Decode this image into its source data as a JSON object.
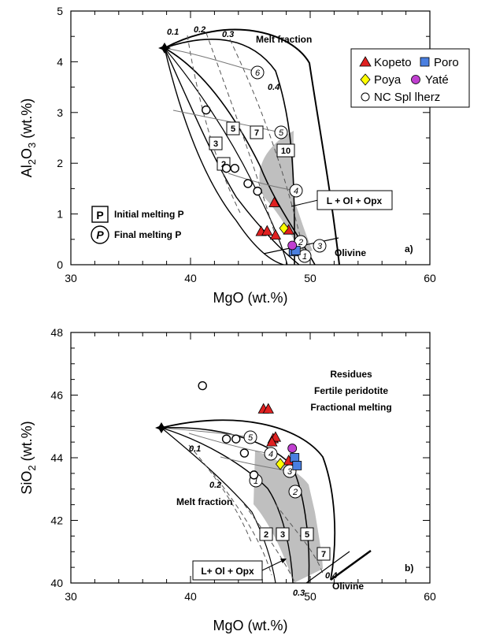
{
  "chart_data": [
    {
      "type": "scatter",
      "panel_label": "a)",
      "xlabel": "MgO (wt.%)",
      "ylabel": "Al2O3 (wt.%)",
      "xlim": [
        30,
        60
      ],
      "ylim": [
        0,
        5
      ],
      "xticks": [
        "30",
        "40",
        "50",
        "60"
      ],
      "yticks": [
        "0",
        "1",
        "2",
        "3",
        "4",
        "5"
      ],
      "grid": false,
      "legend_position": "top-right",
      "series": [
        {
          "name": "Kopeto",
          "marker": "triangle",
          "color": "#e02020",
          "points": [
            [
              47.0,
              1.22
            ],
            [
              45.9,
              0.65
            ],
            [
              46.4,
              0.66
            ],
            [
              47.1,
              0.58
            ],
            [
              48.2,
              0.68
            ]
          ]
        },
        {
          "name": "Poro",
          "marker": "square",
          "color": "#4a7fe0",
          "points": [
            [
              48.6,
              0.26
            ],
            [
              48.8,
              0.28
            ]
          ]
        },
        {
          "name": "Poya",
          "marker": "diamond",
          "color": "#ffff00",
          "points": [
            [
              47.8,
              0.72
            ]
          ]
        },
        {
          "name": "Yaté",
          "marker": "circle",
          "color": "#c040d0",
          "points": [
            [
              48.5,
              0.38
            ]
          ]
        },
        {
          "name": "NC Spl lherz",
          "marker": "open-circle",
          "color": "#ffffff",
          "points": [
            [
              41.3,
              3.05
            ],
            [
              43.0,
              1.9
            ],
            [
              43.7,
              1.9
            ],
            [
              44.8,
              1.6
            ],
            [
              45.6,
              1.45
            ]
          ]
        }
      ],
      "annotations": {
        "melt_fraction_title": "Melt fraction",
        "melt_fraction_labels": [
          "0.1",
          "0.2",
          "0.3",
          "0.4"
        ],
        "field_label": "L + Ol + Opx",
        "olivine_label": "Olivine",
        "initial_p_symbol": "P",
        "initial_p_label": "Initial melting P",
        "final_p_symbol": "P",
        "final_p_label": "Final melting P",
        "initial_pressures": [
          "2",
          "3",
          "5",
          "7",
          "10"
        ],
        "final_pressures": [
          "1",
          "2",
          "3",
          "4",
          "5",
          "6"
        ]
      }
    },
    {
      "type": "scatter",
      "panel_label": "b)",
      "xlabel": "MgO (wt.%)",
      "ylabel": "SiO2 (wt.%)",
      "xlim": [
        30,
        60
      ],
      "ylim": [
        40,
        48
      ],
      "xticks": [
        "30",
        "40",
        "50",
        "60"
      ],
      "yticks": [
        "40",
        "42",
        "44",
        "46",
        "48"
      ],
      "grid": false,
      "series": [
        {
          "name": "Kopeto",
          "marker": "triangle",
          "color": "#e02020",
          "points": [
            [
              46.1,
              45.55
            ],
            [
              46.5,
              45.55
            ],
            [
              46.9,
              44.6
            ],
            [
              47.1,
              44.65
            ],
            [
              46.8,
              44.5
            ],
            [
              48.2,
              43.9
            ]
          ]
        },
        {
          "name": "Poro",
          "marker": "square",
          "color": "#4a7fe0",
          "points": [
            [
              48.7,
              44.0
            ],
            [
              48.9,
              43.75
            ]
          ]
        },
        {
          "name": "Poya",
          "marker": "diamond",
          "color": "#ffff00",
          "points": [
            [
              47.5,
              43.8
            ]
          ]
        },
        {
          "name": "Yaté",
          "marker": "circle",
          "color": "#c040d0",
          "points": [
            [
              48.5,
              44.3
            ]
          ]
        },
        {
          "name": "NC Spl lherz",
          "marker": "open-circle",
          "color": "#ffffff",
          "points": [
            [
              41.0,
              46.3
            ],
            [
              43.0,
              44.6
            ],
            [
              43.8,
              44.6
            ],
            [
              44.5,
              44.15
            ],
            [
              45.3,
              43.45
            ]
          ]
        }
      ],
      "annotations": {
        "residues_lines": [
          "Residues",
          "Fertile peridotite",
          "Fractional melting"
        ],
        "melt_fraction_title": "Melt fraction",
        "melt_fraction_labels": [
          "0.1",
          "0.2",
          "0.3",
          "0.4"
        ],
        "field_label": "L+ Ol + Opx",
        "olivine_label": "Olivine",
        "initial_pressures": [
          "2",
          "3",
          "5",
          "7"
        ],
        "final_pressures": [
          "1",
          "2",
          "3",
          "4",
          "5"
        ]
      }
    }
  ]
}
